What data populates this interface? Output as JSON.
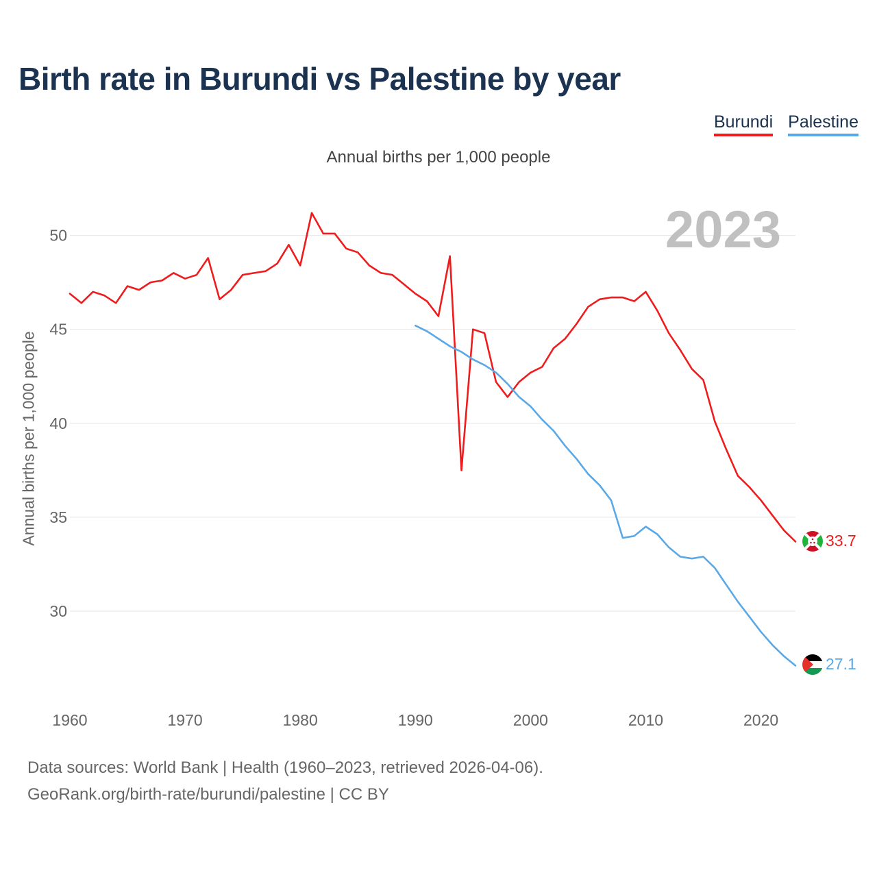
{
  "title": "Birth rate in Burundi vs Palestine by year",
  "subtitle": "Annual births per 1,000 people",
  "legend": [
    {
      "name": "Burundi",
      "color": "#ee1c1c"
    },
    {
      "name": "Palestine",
      "color": "#5aa9e6"
    }
  ],
  "footer": {
    "line1": "Data sources: World Bank | Health (1960–2023, retrieved 2026-04-06).",
    "line2": "GeoRank.org/birth-rate/burundi/palestine | CC BY"
  },
  "chart_data": {
    "type": "line",
    "title": "Birth rate in Burundi vs Palestine by year",
    "ylabel": "Annual births per 1,000 people",
    "xlabel": "",
    "year_label": "2023",
    "xlim": [
      1960,
      2023
    ],
    "ylim": [
      26,
      52
    ],
    "xticks": [
      1960,
      1970,
      1980,
      1990,
      2000,
      2010,
      2020
    ],
    "yticks": [
      30,
      35,
      40,
      45,
      50
    ],
    "grid": true,
    "series": [
      {
        "name": "Burundi",
        "color": "#ee1c1c",
        "end_label": "33.7",
        "x": [
          1960,
          1961,
          1962,
          1963,
          1964,
          1965,
          1966,
          1967,
          1968,
          1969,
          1970,
          1971,
          1972,
          1973,
          1974,
          1975,
          1976,
          1977,
          1978,
          1979,
          1980,
          1981,
          1982,
          1983,
          1984,
          1985,
          1986,
          1987,
          1988,
          1989,
          1990,
          1991,
          1992,
          1993,
          1994,
          1995,
          1996,
          1997,
          1998,
          1999,
          2000,
          2001,
          2002,
          2003,
          2004,
          2005,
          2006,
          2007,
          2008,
          2009,
          2010,
          2011,
          2012,
          2013,
          2014,
          2015,
          2016,
          2017,
          2018,
          2019,
          2020,
          2021,
          2022,
          2023
        ],
        "values": [
          46.9,
          46.4,
          47.0,
          46.8,
          46.4,
          47.3,
          47.1,
          47.5,
          47.6,
          48.0,
          47.7,
          47.9,
          48.8,
          46.6,
          47.1,
          47.9,
          48.0,
          48.1,
          48.5,
          49.5,
          48.4,
          51.2,
          50.1,
          50.1,
          49.3,
          49.1,
          48.4,
          48.0,
          47.9,
          47.4,
          46.9,
          46.5,
          45.7,
          48.9,
          37.5,
          45.0,
          44.8,
          42.2,
          41.4,
          42.2,
          42.7,
          43.0,
          44.0,
          44.5,
          45.3,
          46.2,
          46.6,
          46.7,
          46.7,
          46.5,
          47.0,
          46.0,
          44.8,
          43.9,
          42.9,
          42.3,
          40.1,
          38.6,
          37.2,
          36.6,
          35.9,
          35.1,
          34.3,
          33.7
        ]
      },
      {
        "name": "Palestine",
        "color": "#5aa9e6",
        "end_label": "27.1",
        "x": [
          1990,
          1991,
          1992,
          1993,
          1994,
          1995,
          1996,
          1997,
          1998,
          1999,
          2000,
          2001,
          2002,
          2003,
          2004,
          2005,
          2006,
          2007,
          2008,
          2009,
          2010,
          2011,
          2012,
          2013,
          2014,
          2015,
          2016,
          2017,
          2018,
          2019,
          2020,
          2021,
          2022,
          2023
        ],
        "values": [
          45.2,
          44.9,
          44.5,
          44.1,
          43.8,
          43.4,
          43.1,
          42.7,
          42.1,
          41.4,
          40.9,
          40.2,
          39.6,
          38.8,
          38.1,
          37.3,
          36.7,
          35.9,
          33.9,
          34.0,
          34.5,
          34.1,
          33.4,
          32.9,
          32.8,
          32.9,
          32.3,
          31.4,
          30.5,
          29.7,
          28.9,
          28.2,
          27.6,
          27.1
        ]
      }
    ]
  }
}
